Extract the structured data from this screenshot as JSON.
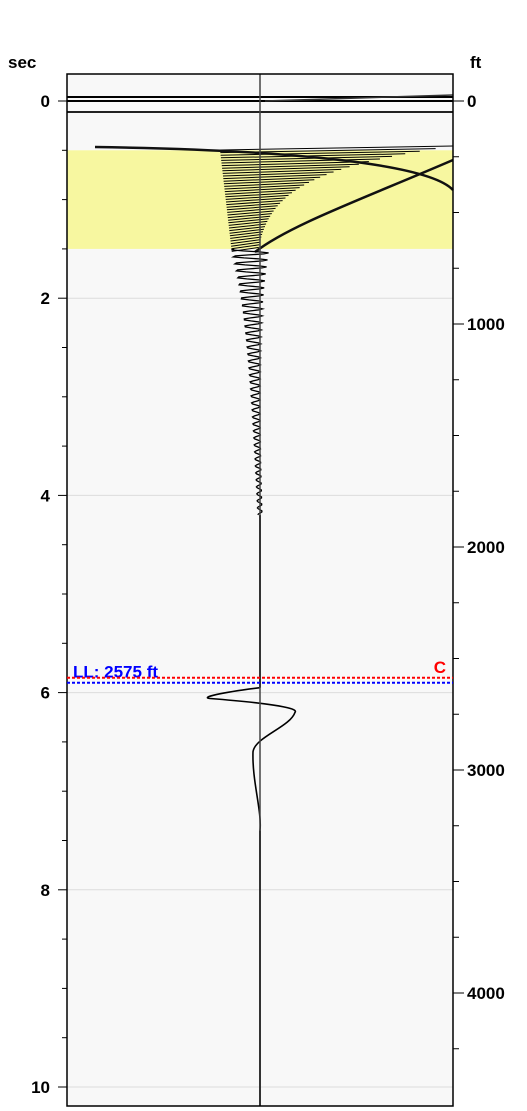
{
  "chart_data": {
    "type": "line",
    "title": "",
    "left_axis": {
      "title": "sec",
      "min": 0,
      "max": 10,
      "major_ticks": [
        0,
        2,
        4,
        6,
        8,
        10
      ],
      "minor_step": 0.5
    },
    "right_axis": {
      "title": "ft",
      "min": 0,
      "max": 4400,
      "major_ticks": [
        0,
        1000,
        2000,
        3000,
        4000
      ],
      "minor_step": 250
    },
    "grid": true,
    "highlight_band": {
      "from_sec": 0.5,
      "to_sec": 1.5,
      "color": "#f7f7a0"
    },
    "markers": [
      {
        "label": "LL: 2575 ft",
        "sec": 5.9,
        "color": "#0000ff"
      },
      {
        "label": "C",
        "sec": 5.85,
        "color": "#ff0000"
      }
    ],
    "trace": {
      "name": "",
      "color": "#000000",
      "description_points_sec": [
        0.5,
        1.0,
        1.5,
        2.0,
        3.0,
        4.0,
        5.0,
        5.9,
        6.0,
        6.2,
        6.4,
        6.8,
        7.2,
        10.0
      ]
    }
  }
}
